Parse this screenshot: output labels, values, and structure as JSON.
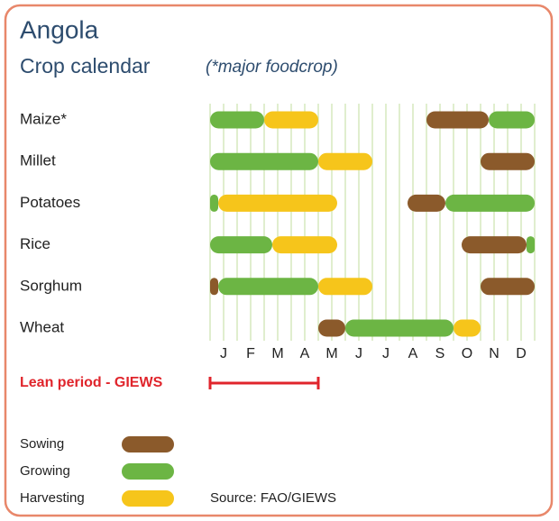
{
  "chart_data": {
    "type": "gantt",
    "title": "Angola",
    "subtitle": "Crop calendar",
    "note": "(*major foodcrop)",
    "categories": [
      "Maize*",
      "Millet",
      "Potatoes",
      "Rice",
      "Sorghum",
      "Wheat"
    ],
    "months": [
      "J",
      "F",
      "M",
      "A",
      "M",
      "J",
      "J",
      "A",
      "S",
      "O",
      "N",
      "D"
    ],
    "xlim": [
      0,
      12
    ],
    "stages": [
      {
        "name": "Sowing",
        "color": "#8b5a2b"
      },
      {
        "name": "Growing",
        "color": "#6cb544"
      },
      {
        "name": "Harvesting",
        "color": "#f6c51b"
      }
    ],
    "bars": [
      {
        "row": 0,
        "stage": 1,
        "start": 0,
        "end": 2
      },
      {
        "row": 0,
        "stage": 2,
        "start": 2,
        "end": 4
      },
      {
        "row": 0,
        "stage": 0,
        "start": 8,
        "end": 10.3
      },
      {
        "row": 0,
        "stage": 1,
        "start": 10.3,
        "end": 12
      },
      {
        "row": 1,
        "stage": 1,
        "start": 0,
        "end": 4
      },
      {
        "row": 1,
        "stage": 2,
        "start": 4,
        "end": 6
      },
      {
        "row": 1,
        "stage": 0,
        "start": 10,
        "end": 12
      },
      {
        "row": 2,
        "stage": 1,
        "start": 0,
        "end": 0.3
      },
      {
        "row": 2,
        "stage": 2,
        "start": 0.3,
        "end": 4.7
      },
      {
        "row": 2,
        "stage": 0,
        "start": 7.3,
        "end": 8.7
      },
      {
        "row": 2,
        "stage": 1,
        "start": 8.7,
        "end": 12
      },
      {
        "row": 3,
        "stage": 1,
        "start": 0,
        "end": 2.3
      },
      {
        "row": 3,
        "stage": 2,
        "start": 2.3,
        "end": 4.7
      },
      {
        "row": 3,
        "stage": 0,
        "start": 9.3,
        "end": 11.7
      },
      {
        "row": 3,
        "stage": 1,
        "start": 11.7,
        "end": 12
      },
      {
        "row": 4,
        "stage": 0,
        "start": 0,
        "end": 0.3
      },
      {
        "row": 4,
        "stage": 1,
        "start": 0.3,
        "end": 4
      },
      {
        "row": 4,
        "stage": 2,
        "start": 4,
        "end": 6
      },
      {
        "row": 4,
        "stage": 0,
        "start": 10,
        "end": 12
      },
      {
        "row": 5,
        "stage": 0,
        "start": 4,
        "end": 5
      },
      {
        "row": 5,
        "stage": 1,
        "start": 5,
        "end": 9
      },
      {
        "row": 5,
        "stage": 2,
        "start": 9,
        "end": 10
      }
    ],
    "lean_period": {
      "label": "Lean period - GIEWS",
      "start": 0,
      "end": 4,
      "color": "#e0252c"
    },
    "source": "Source: FAO/GIEWS"
  }
}
